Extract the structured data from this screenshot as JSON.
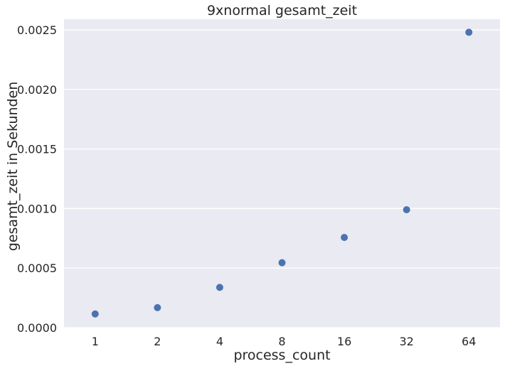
{
  "chart_data": {
    "type": "scatter",
    "title": "9xnormal gesamt_zeit",
    "xlabel": "process_count",
    "ylabel": "gesamt_zeit in Sekunden",
    "categories": [
      "1",
      "2",
      "4",
      "8",
      "16",
      "32",
      "64"
    ],
    "series": [
      {
        "values": [
          0.000115,
          0.000168,
          0.000338,
          0.000545,
          0.000757,
          0.00099,
          0.00248
        ]
      }
    ],
    "yticks": [
      "0.0000",
      "0.0005",
      "0.0010",
      "0.0015",
      "0.0020",
      "0.0025"
    ],
    "ylim": [
      0,
      0.00259
    ],
    "grid": true,
    "colors": {
      "background": "#eaeaf2",
      "point": "#4c72b0",
      "grid": "#ffffff"
    }
  }
}
